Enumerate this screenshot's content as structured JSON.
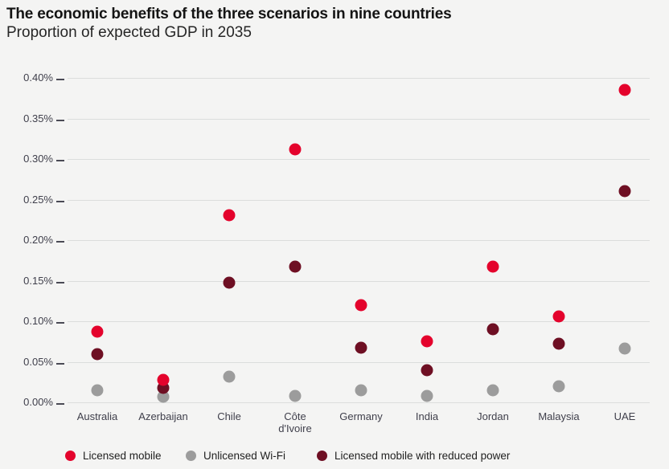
{
  "title": "The economic benefits of the three scenarios in nine countries",
  "subtitle": "Proportion of expected GDP in 2035",
  "colors": {
    "background": "#F4F4F3",
    "gridline": "#DBDDDC",
    "axis_text": "#3F3F4B",
    "title_text": "#141414",
    "licensed_mobile": "#E4032C",
    "unlicensed_wifi": "#9C9C9C",
    "licensed_mobile_reduced_power": "#6E0F23"
  },
  "chart_data": {
    "type": "scatter",
    "title": "The economic benefits of the three scenarios in nine countries",
    "subtitle": "Proportion of expected GDP in 2035",
    "categories": [
      "Australia",
      "Azerbaijan",
      "Chile",
      "Côte d'Ivoire",
      "Germany",
      "India",
      "Jordan",
      "Malaysia",
      "UAE"
    ],
    "series": [
      {
        "name": "Licensed mobile",
        "color": "#E4032C",
        "values": [
          0.087,
          0.028,
          0.231,
          0.312,
          0.12,
          0.075,
          0.167,
          0.106,
          0.385
        ]
      },
      {
        "name": "Unlicensed Wi-Fi",
        "color": "#9C9C9C",
        "values": [
          0.015,
          0.007,
          0.032,
          0.008,
          0.015,
          0.008,
          0.015,
          0.02,
          0.066
        ]
      },
      {
        "name": "Licensed mobile with reduced power",
        "color": "#6E0F23",
        "values": [
          0.059,
          0.018,
          0.148,
          0.167,
          0.067,
          0.04,
          0.09,
          0.072,
          0.26
        ]
      }
    ],
    "xlabel": "",
    "ylabel": "",
    "ylim": [
      0,
      0.4
    ],
    "ytick_step": 0.05,
    "ytick_labels": [
      "0.00%",
      "0.05%",
      "0.10%",
      "0.15%",
      "0.20%",
      "0.25%",
      "0.30%",
      "0.35%",
      "0.40%"
    ],
    "unit": "% of expected GDP",
    "grid": "horizontal",
    "legend_position": "bottom"
  }
}
